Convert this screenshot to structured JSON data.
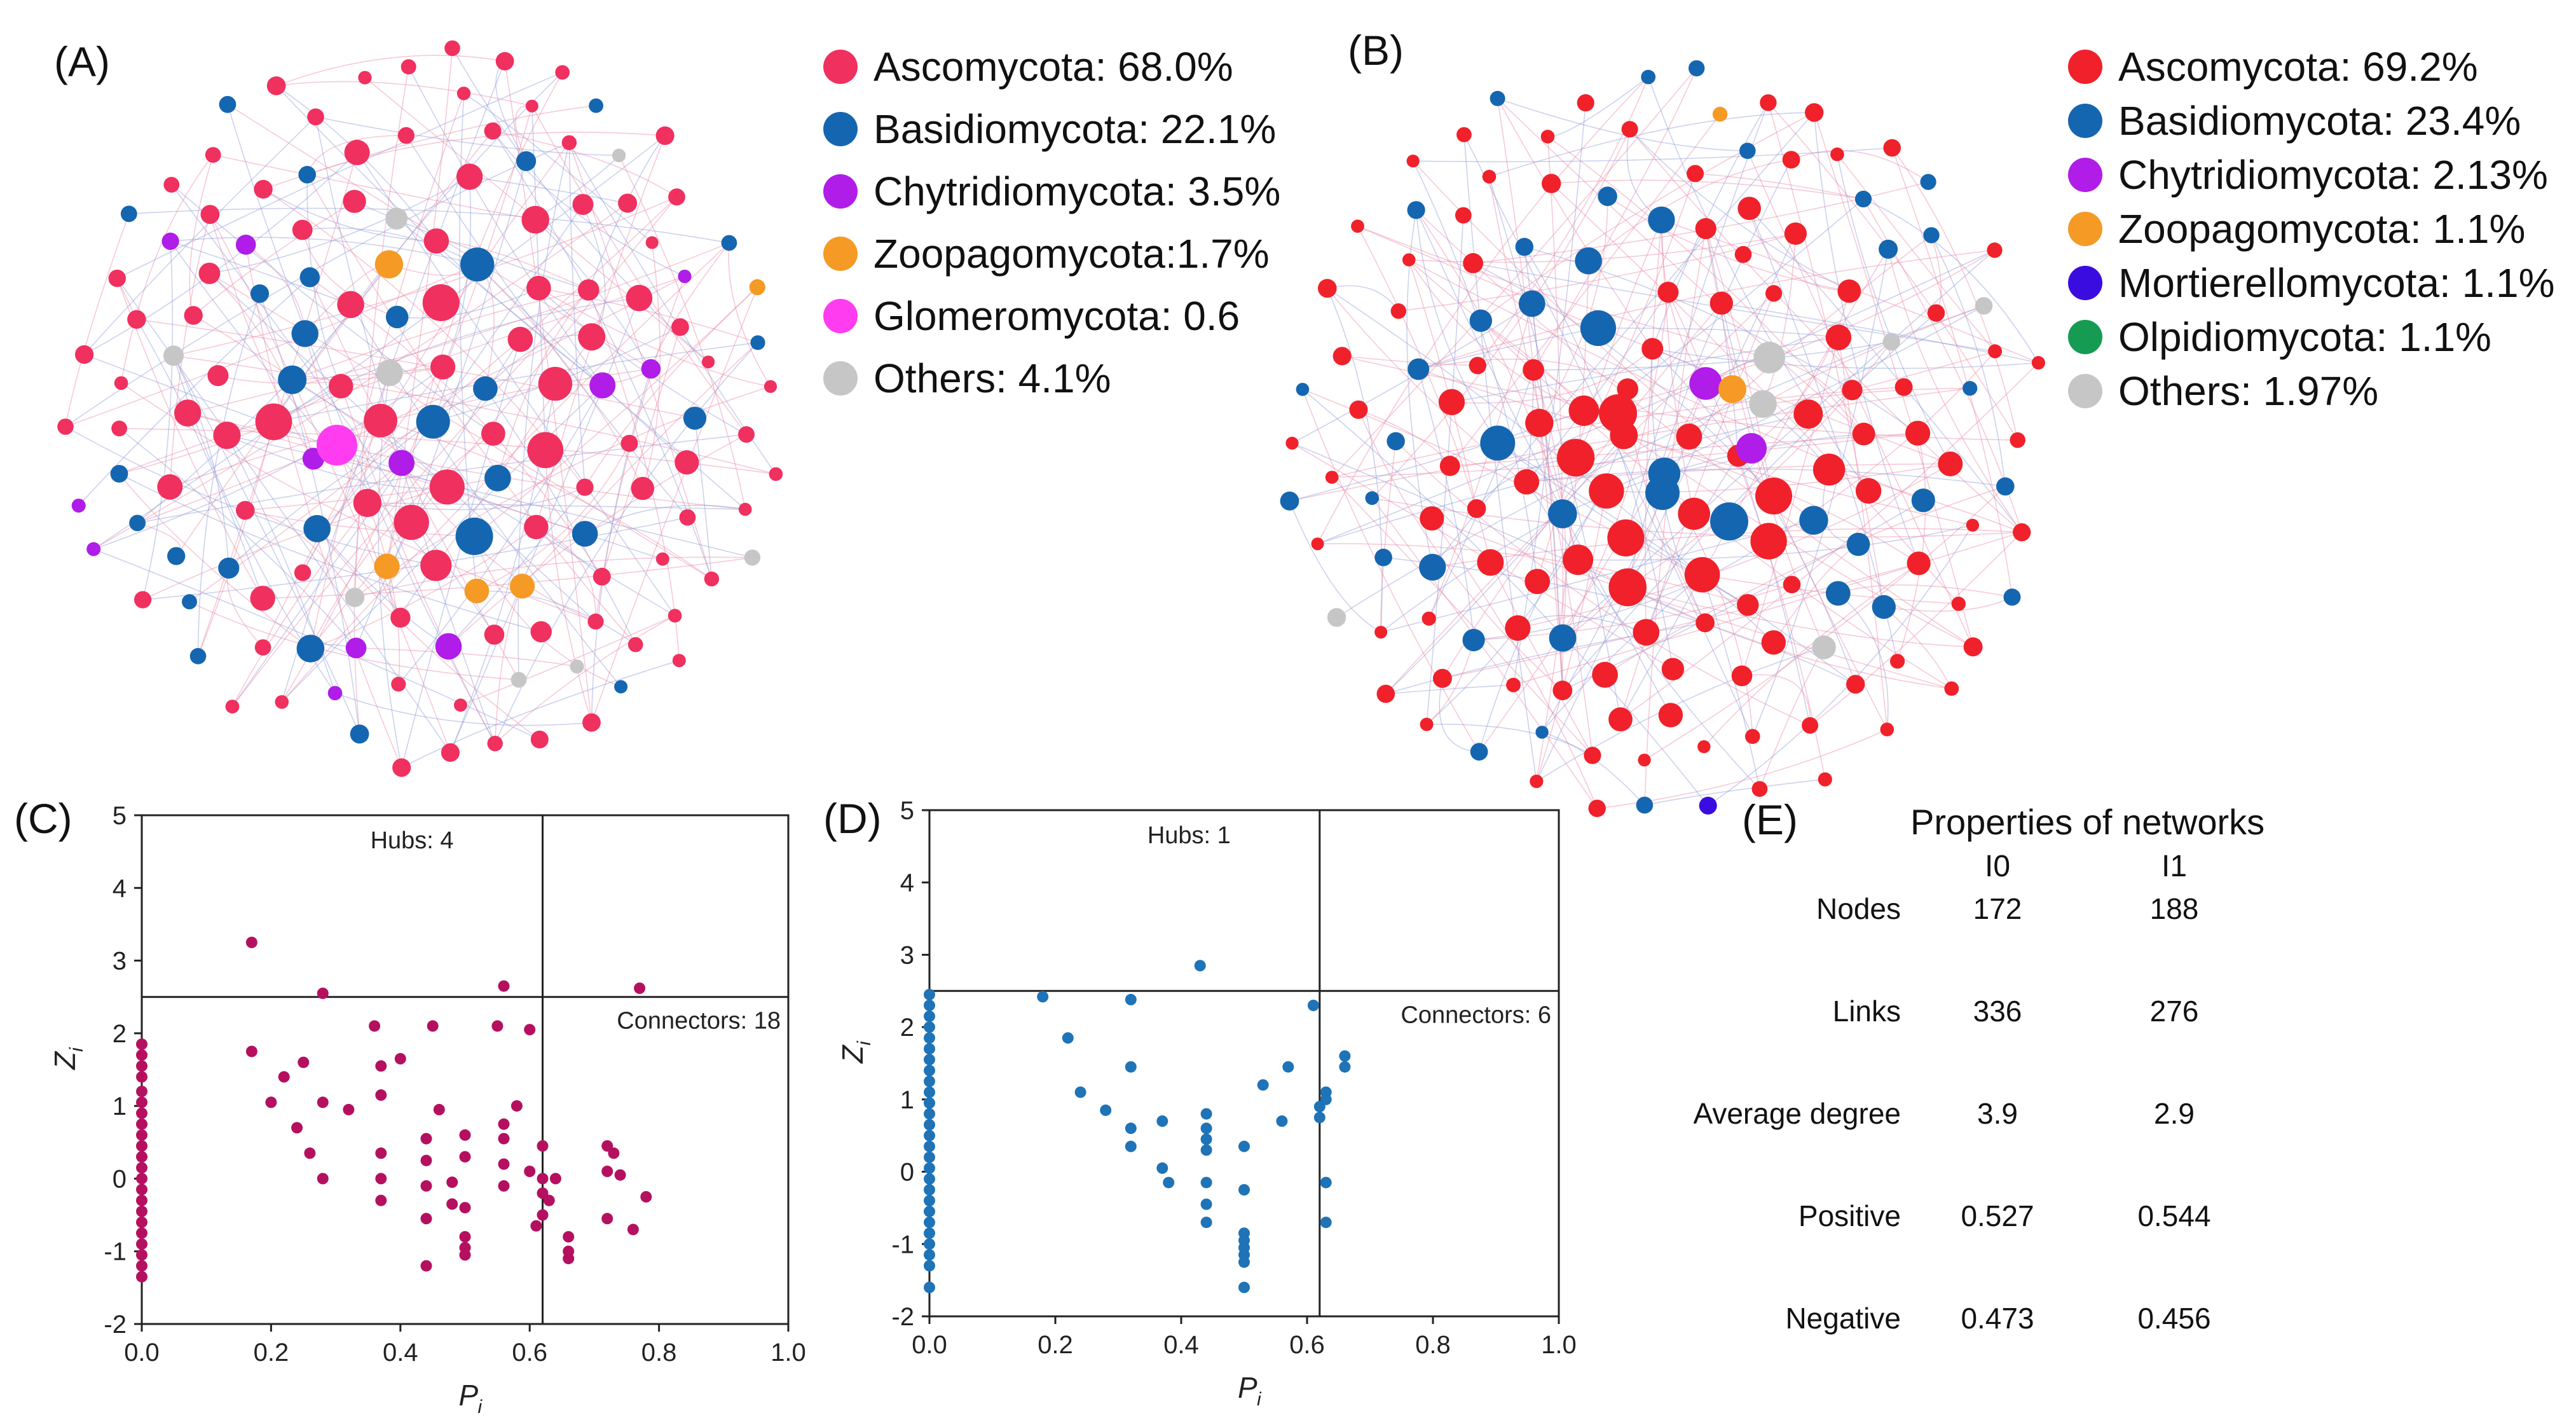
{
  "colors": {
    "ascomycota_A": "#f0305e",
    "ascomycota_B": "#f0212a",
    "basidiomycota": "#1566b0",
    "chytridiomycota": "#b01ce8",
    "zoopagomycota": "#f59a25",
    "glomeromycota": "#ff3cf0",
    "mortierellomycota": "#3a0ce0",
    "olpidiomycota": "#169b53",
    "others": "#c6c6c6",
    "scatter_C": "#b5105f",
    "scatter_D": "#1f73b7"
  },
  "panelA": {
    "label": "(A)",
    "legend": [
      {
        "text": "Ascomycota: 68.0%",
        "color": "#f0305e"
      },
      {
        "text": "Basidiomycota: 22.1%",
        "color": "#1566b0"
      },
      {
        "text": "Chytridiomycota: 3.5%",
        "color": "#b01ce8"
      },
      {
        "text": "Zoopagomycota:1.7%",
        "color": "#f59a25"
      },
      {
        "text": "Glomeromycota: 0.6",
        "color": "#ff3cf0"
      },
      {
        "text": "Others: 4.1%",
        "color": "#c6c6c6"
      }
    ]
  },
  "panelB": {
    "label": "(B)",
    "legend": [
      {
        "text": "Ascomycota: 69.2%",
        "color": "#f0212a"
      },
      {
        "text": "Basidiomycota: 23.4%",
        "color": "#1566b0"
      },
      {
        "text": "Chytridiomycota: 2.13%",
        "color": "#b01ce8"
      },
      {
        "text": "Zoopagomycota: 1.1%",
        "color": "#f59a25"
      },
      {
        "text": "Mortierellomycota: 1.1%",
        "color": "#3a0ce0"
      },
      {
        "text": "Olpidiomycota: 1.1%",
        "color": "#169b53"
      },
      {
        "text": "Others: 1.97%",
        "color": "#c6c6c6"
      }
    ]
  },
  "chart_data": [
    {
      "id": "C",
      "type": "scatter",
      "label": "(C)",
      "xlabel": "P",
      "xlabel_sub": "i",
      "ylabel": "Z",
      "ylabel_sub": "i",
      "xlim": [
        0,
        1
      ],
      "ylim": [
        -2,
        5
      ],
      "xticks": [
        "0.0",
        "0.2",
        "0.4",
        "0.6",
        "0.8",
        "1.0"
      ],
      "yticks": [
        "-2",
        "-1",
        "0",
        "1",
        "2",
        "3",
        "4",
        "5"
      ],
      "thresholds": {
        "x": 0.62,
        "y": 2.5
      },
      "annotations": {
        "hubs": "Hubs: 4",
        "connectors": "Connectors: 18"
      },
      "points": [
        [
          0,
          1.85
        ],
        [
          0,
          1.7
        ],
        [
          0,
          1.55
        ],
        [
          0,
          1.4
        ],
        [
          0,
          1.2
        ],
        [
          0,
          1.05
        ],
        [
          0,
          0.9
        ],
        [
          0,
          0.75
        ],
        [
          0,
          0.6
        ],
        [
          0,
          0.45
        ],
        [
          0,
          0.3
        ],
        [
          0,
          0.15
        ],
        [
          0,
          0
        ],
        [
          0,
          -0.15
        ],
        [
          0,
          -0.3
        ],
        [
          0,
          -0.45
        ],
        [
          0,
          -0.6
        ],
        [
          0,
          -0.75
        ],
        [
          0,
          -0.9
        ],
        [
          0,
          -1.05
        ],
        [
          0,
          -1.2
        ],
        [
          0,
          -1.35
        ],
        [
          0.17,
          3.25
        ],
        [
          0.28,
          2.55
        ],
        [
          0.56,
          2.65
        ],
        [
          0.77,
          2.62
        ],
        [
          0.17,
          1.75
        ],
        [
          0.2,
          1.05
        ],
        [
          0.22,
          1.4
        ],
        [
          0.24,
          0.7
        ],
        [
          0.25,
          1.6
        ],
        [
          0.26,
          0.35
        ],
        [
          0.28,
          1.05
        ],
        [
          0.28,
          0.0
        ],
        [
          0.32,
          0.95
        ],
        [
          0.36,
          2.1
        ],
        [
          0.37,
          1.55
        ],
        [
          0.37,
          1.15
        ],
        [
          0.37,
          0.35
        ],
        [
          0.37,
          0.0
        ],
        [
          0.37,
          -0.3
        ],
        [
          0.4,
          1.65
        ],
        [
          0.44,
          0.55
        ],
        [
          0.44,
          0.25
        ],
        [
          0.44,
          -0.1
        ],
        [
          0.44,
          -0.55
        ],
        [
          0.44,
          -1.2
        ],
        [
          0.45,
          2.1
        ],
        [
          0.46,
          0.95
        ],
        [
          0.48,
          -0.05
        ],
        [
          0.48,
          -0.35
        ],
        [
          0.5,
          0.6
        ],
        [
          0.5,
          0.3
        ],
        [
          0.5,
          -0.4
        ],
        [
          0.5,
          -0.8
        ],
        [
          0.5,
          -0.95
        ],
        [
          0.5,
          -1.05
        ],
        [
          0.55,
          2.1
        ],
        [
          0.56,
          0.75
        ],
        [
          0.56,
          0.55
        ],
        [
          0.56,
          0.2
        ],
        [
          0.56,
          -0.1
        ],
        [
          0.58,
          1.0
        ],
        [
          0.6,
          2.05
        ],
        [
          0.6,
          0.1
        ],
        [
          0.61,
          -0.65
        ],
        [
          0.62,
          0.45
        ],
        [
          0.62,
          0.0
        ],
        [
          0.62,
          -0.2
        ],
        [
          0.62,
          -0.5
        ],
        [
          0.63,
          -0.3
        ],
        [
          0.64,
          0.0
        ],
        [
          0.66,
          -0.8
        ],
        [
          0.66,
          -1.0
        ],
        [
          0.66,
          -1.1
        ],
        [
          0.72,
          0.45
        ],
        [
          0.72,
          0.1
        ],
        [
          0.72,
          -0.55
        ],
        [
          0.73,
          0.35
        ],
        [
          0.74,
          0.05
        ],
        [
          0.76,
          -0.7
        ],
        [
          0.78,
          -0.25
        ]
      ]
    },
    {
      "id": "D",
      "type": "scatter",
      "label": "(D)",
      "xlabel": "P",
      "xlabel_sub": "i",
      "ylabel": "Z",
      "ylabel_sub": "i",
      "xlim": [
        0,
        1
      ],
      "ylim": [
        -2,
        5
      ],
      "xticks": [
        "0.0",
        "0.2",
        "0.4",
        "0.6",
        "0.8",
        "1.0"
      ],
      "yticks": [
        "-2",
        "-1",
        "0",
        "1",
        "2",
        "3",
        "4",
        "5"
      ],
      "thresholds": {
        "x": 0.62,
        "y": 2.5
      },
      "annotations": {
        "hubs": "Hubs: 1",
        "connectors": "Connectors: 6"
      },
      "points": [
        [
          0,
          2.45
        ],
        [
          0,
          2.3
        ],
        [
          0,
          2.15
        ],
        [
          0,
          2.0
        ],
        [
          0,
          1.85
        ],
        [
          0,
          1.7
        ],
        [
          0,
          1.55
        ],
        [
          0,
          1.4
        ],
        [
          0,
          1.25
        ],
        [
          0,
          1.1
        ],
        [
          0,
          0.95
        ],
        [
          0,
          0.8
        ],
        [
          0,
          0.65
        ],
        [
          0,
          0.5
        ],
        [
          0,
          0.35
        ],
        [
          0,
          0.2
        ],
        [
          0,
          0.05
        ],
        [
          0,
          -0.1
        ],
        [
          0,
          -0.25
        ],
        [
          0,
          -0.4
        ],
        [
          0,
          -0.55
        ],
        [
          0,
          -0.7
        ],
        [
          0,
          -0.85
        ],
        [
          0,
          -1.0
        ],
        [
          0,
          -1.15
        ],
        [
          0,
          -1.3
        ],
        [
          0,
          -1.6
        ],
        [
          0.43,
          2.85
        ],
        [
          0.18,
          2.42
        ],
        [
          0.22,
          1.85
        ],
        [
          0.24,
          1.1
        ],
        [
          0.28,
          0.85
        ],
        [
          0.32,
          2.38
        ],
        [
          0.32,
          1.45
        ],
        [
          0.32,
          0.6
        ],
        [
          0.32,
          0.35
        ],
        [
          0.37,
          0.7
        ],
        [
          0.37,
          0.05
        ],
        [
          0.38,
          -0.15
        ],
        [
          0.44,
          0.8
        ],
        [
          0.44,
          0.6
        ],
        [
          0.44,
          0.45
        ],
        [
          0.44,
          0.3
        ],
        [
          0.44,
          -0.15
        ],
        [
          0.44,
          -0.45
        ],
        [
          0.44,
          -0.7
        ],
        [
          0.5,
          0.35
        ],
        [
          0.5,
          -0.85
        ],
        [
          0.5,
          -0.95
        ],
        [
          0.5,
          -1.05
        ],
        [
          0.5,
          -1.15
        ],
        [
          0.5,
          -1.25
        ],
        [
          0.5,
          -1.6
        ],
        [
          0.5,
          -0.25
        ],
        [
          0.53,
          1.2
        ],
        [
          0.56,
          0.7
        ],
        [
          0.57,
          1.45
        ],
        [
          0.61,
          2.3
        ],
        [
          0.62,
          0.75
        ],
        [
          0.62,
          0.9
        ],
        [
          0.63,
          1.0
        ],
        [
          0.63,
          1.1
        ],
        [
          0.63,
          -0.15
        ],
        [
          0.63,
          -0.7
        ],
        [
          0.66,
          1.45
        ],
        [
          0.66,
          1.6
        ]
      ]
    }
  ],
  "panelE": {
    "label": "(E)",
    "title": "Properties of networks",
    "columns": [
      "I0",
      "I1"
    ],
    "rows": [
      {
        "name": "Nodes",
        "v0": "172",
        "v1": "188"
      },
      {
        "name": "Links",
        "v0": "336",
        "v1": "276"
      },
      {
        "name": "Average degree",
        "v0": "3.9",
        "v1": "2.9"
      },
      {
        "name": "Positive",
        "v0": "0.527",
        "v1": "0.544"
      },
      {
        "name": "Negative",
        "v0": "0.473",
        "v1": "0.456"
      }
    ]
  }
}
